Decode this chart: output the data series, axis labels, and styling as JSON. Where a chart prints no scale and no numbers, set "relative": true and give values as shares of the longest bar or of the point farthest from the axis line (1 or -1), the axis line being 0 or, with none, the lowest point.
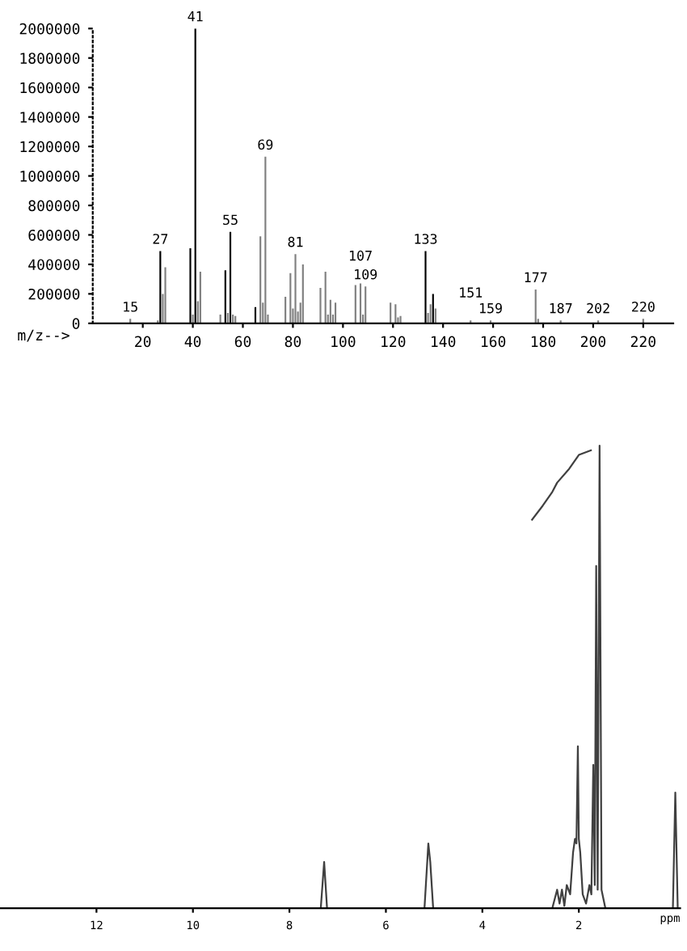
{
  "chart_data": [
    {
      "type": "bar",
      "xlabel": "m/z-->",
      "xlim": [
        0,
        232
      ],
      "ylim": [
        0,
        2000000
      ],
      "xticks": [
        20,
        40,
        60,
        80,
        100,
        120,
        140,
        160,
        180,
        200,
        220
      ],
      "yticks": [
        0,
        200000,
        400000,
        600000,
        800000,
        1000000,
        1200000,
        1400000,
        1600000,
        1800000,
        2000000
      ],
      "x": [
        15,
        26,
        27,
        28,
        29,
        39,
        40,
        41,
        42,
        43,
        51,
        53,
        54,
        55,
        56,
        57,
        65,
        67,
        68,
        69,
        70,
        77,
        79,
        80,
        81,
        82,
        83,
        84,
        91,
        93,
        94,
        95,
        96,
        97,
        105,
        107,
        108,
        109,
        119,
        121,
        122,
        123,
        133,
        134,
        135,
        136,
        137,
        151,
        159,
        177,
        178,
        187,
        202,
        220
      ],
      "values": [
        30000,
        20000,
        490000,
        200000,
        380000,
        510000,
        60000,
        2000000,
        150000,
        350000,
        60000,
        360000,
        70000,
        620000,
        60000,
        50000,
        110000,
        590000,
        140000,
        1130000,
        60000,
        180000,
        340000,
        100000,
        470000,
        80000,
        140000,
        400000,
        240000,
        350000,
        60000,
        160000,
        60000,
        140000,
        260000,
        270000,
        60000,
        250000,
        140000,
        130000,
        40000,
        50000,
        490000,
        70000,
        130000,
        200000,
        100000,
        20000,
        20000,
        230000,
        30000,
        20000,
        20000,
        30000
      ],
      "colors": [
        "#808080",
        "#808080",
        "#000000",
        "#808080",
        "#808080",
        "#000000",
        "#808080",
        "#000000",
        "#808080",
        "#808080",
        "#808080",
        "#000000",
        "#808080",
        "#000000",
        "#808080",
        "#808080",
        "#000000",
        "#808080",
        "#808080",
        "#808080",
        "#808080",
        "#808080",
        "#808080",
        "#808080",
        "#808080",
        "#808080",
        "#808080",
        "#808080",
        "#808080",
        "#808080",
        "#808080",
        "#808080",
        "#808080",
        "#808080",
        "#808080",
        "#808080",
        "#808080",
        "#808080",
        "#808080",
        "#808080",
        "#808080",
        "#808080",
        "#000000",
        "#808080",
        "#808080",
        "#000000",
        "#808080",
        "#808080",
        "#808080",
        "#808080",
        "#808080",
        "#808080",
        "#808080",
        "#808080"
      ],
      "annotations": [
        {
          "text": "15",
          "x": 15,
          "y": 30000
        },
        {
          "text": "27",
          "x": 27,
          "y": 490000
        },
        {
          "text": "41",
          "x": 41,
          "y": 2000000
        },
        {
          "text": "55",
          "x": 55,
          "y": 620000
        },
        {
          "text": "69",
          "x": 69,
          "y": 1130000
        },
        {
          "text": "81",
          "x": 81,
          "y": 470000
        },
        {
          "text": "107",
          "x": 107,
          "y": 270000
        },
        {
          "text": "109",
          "x": 109,
          "y": 250000
        },
        {
          "text": "133",
          "x": 133,
          "y": 490000
        },
        {
          "text": "151",
          "x": 151,
          "y": 20000
        },
        {
          "text": "159",
          "x": 159,
          "y": 20000
        },
        {
          "text": "177",
          "x": 177,
          "y": 230000
        },
        {
          "text": "187",
          "x": 187,
          "y": 20000
        },
        {
          "text": "202",
          "x": 202,
          "y": 20000
        },
        {
          "text": "220",
          "x": 220,
          "y": 30000
        }
      ],
      "grid": false
    },
    {
      "type": "line",
      "relative": true,
      "xlabel": "ppm",
      "xlim": [
        14,
        -0.1
      ],
      "xticks": [
        12,
        10,
        8,
        6,
        4,
        2
      ],
      "series": [
        {
          "color": "#404040",
          "x": [
            13.9,
            7.35,
            7.28,
            7.22,
            5.2,
            5.12,
            5.08,
            5.02,
            2.55,
            2.45,
            2.4,
            2.35,
            2.3,
            2.25,
            2.18,
            2.12,
            2.08,
            2.05,
            2.02,
            2.0,
            1.97,
            1.92,
            1.85,
            1.78,
            1.74,
            1.7,
            1.67,
            1.64,
            1.61,
            1.57,
            1.53,
            1.45,
            0.05,
            0.0,
            -0.05
          ],
          "values": [
            0,
            0,
            0.1,
            0,
            0,
            0.14,
            0.1,
            0,
            0,
            0.04,
            0.01,
            0.04,
            0.005,
            0.05,
            0.03,
            0.12,
            0.15,
            0.14,
            0.35,
            0.15,
            0.12,
            0.03,
            0.01,
            0.05,
            0.03,
            0.31,
            0.05,
            0.74,
            0.04,
            1.0,
            0.04,
            0,
            0,
            0.25,
            0
          ]
        },
        {
          "color": "#404040",
          "x": [
            2.97,
            2.75,
            2.55,
            2.45,
            2.2,
            2.0,
            1.75
          ],
          "values": [
            0.84,
            0.87,
            0.9,
            0.92,
            0.95,
            0.98,
            0.99
          ]
        }
      ],
      "grid": false
    }
  ]
}
